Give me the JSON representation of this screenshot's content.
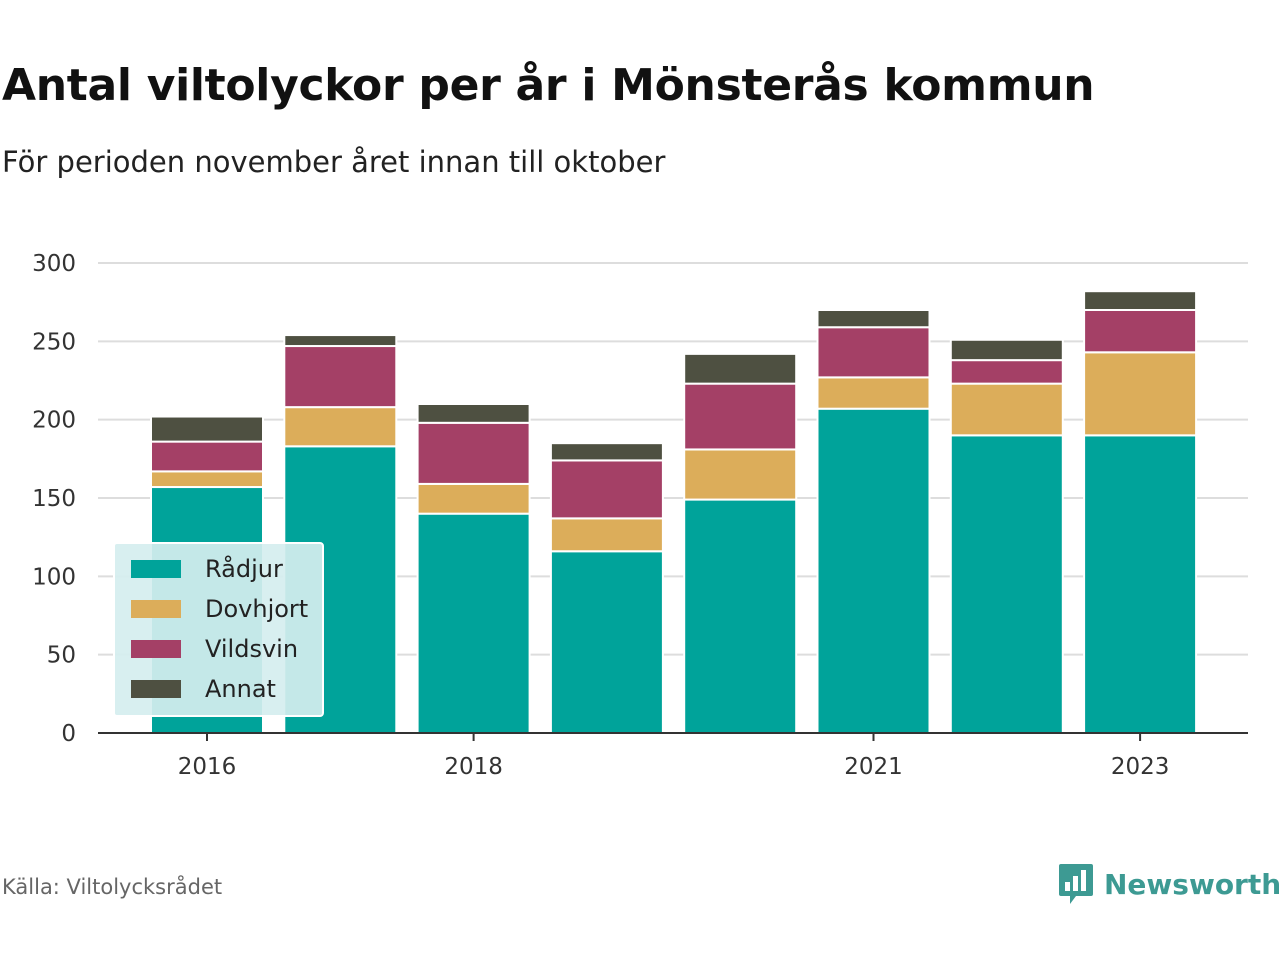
{
  "title": "Antal viltolyckor per år i Mönsterås kommun",
  "subtitle": "För perioden november året innan till oktober",
  "source": "Källa: Viltolycksrådet",
  "brand": {
    "name": "Newsworthy",
    "icon": "newsworthy-logo-icon",
    "color": "#3d9a93"
  },
  "chart_data": {
    "type": "bar",
    "stacked": true,
    "categories": [
      "2016",
      "2017",
      "2018",
      "2019",
      "2020",
      "2021",
      "2022",
      "2023"
    ],
    "x_tick_labels": [
      "2016",
      "",
      "2018",
      "",
      "",
      "2021",
      "",
      "2023"
    ],
    "series": [
      {
        "name": "Rådjur",
        "color": "#00a39a",
        "values": [
          157,
          183,
          140,
          116,
          149,
          207,
          190,
          190
        ]
      },
      {
        "name": "Dovhjort",
        "color": "#dcad5a",
        "values": [
          10,
          25,
          19,
          21,
          32,
          20,
          33,
          53
        ]
      },
      {
        "name": "Vildsvin",
        "color": "#a44066",
        "values": [
          19,
          39,
          39,
          37,
          42,
          32,
          15,
          27
        ]
      },
      {
        "name": "Annat",
        "color": "#4e5041",
        "values": [
          16,
          7,
          12,
          11,
          19,
          11,
          13,
          12
        ]
      }
    ],
    "ylim": [
      0,
      300
    ],
    "yticks": [
      0,
      50,
      100,
      150,
      200,
      250,
      300
    ],
    "grid": true,
    "legend_position": "bottom-left"
  }
}
